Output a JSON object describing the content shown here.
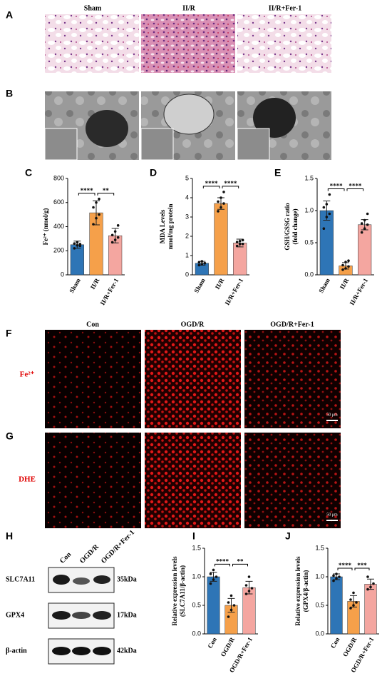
{
  "panel_A": {
    "letter": "A",
    "columns": [
      "Sham",
      "II/R",
      "II/R+Fer-1"
    ]
  },
  "panel_B": {
    "letter": "B"
  },
  "panel_F": {
    "letter": "F",
    "columns": [
      "Con",
      "OGD/R",
      "OGD/R+Fer-1"
    ],
    "row_label": "Fe²⁺",
    "scale_bar": "50 μm"
  },
  "panel_G": {
    "letter": "G",
    "row_label": "DHE",
    "scale_bar": "50 μm"
  },
  "panel_H": {
    "letter": "H",
    "columns": [
      "Con",
      "OGD/R",
      "OGD/R+Fer-1"
    ],
    "rows": [
      {
        "protein": "SLC7A11",
        "size": "35kDa"
      },
      {
        "protein": "GPX4",
        "size": "17kDa"
      },
      {
        "protein": "β-actin",
        "size": "42kDa"
      }
    ]
  },
  "chart_data": [
    {
      "type": "bar",
      "letter": "C",
      "y_label": [
        "Fe²⁺ (nmol/g)"
      ],
      "categories": [
        "Sham",
        "II/R",
        "II/R+Fer-1"
      ],
      "values": [
        250,
        515,
        325
      ],
      "errors": [
        30,
        100,
        60
      ],
      "points": [
        [
          220,
          245,
          255,
          260,
          270,
          240
        ],
        [
          420,
          470,
          500,
          560,
          600,
          630
        ],
        [
          270,
          290,
          310,
          330,
          360,
          410
        ]
      ],
      "colors": [
        "#2e75b6",
        "#f5a04a",
        "#f4a6a0"
      ],
      "ylim": [
        0,
        800
      ],
      "yticks": [
        0,
        200,
        400,
        600,
        800
      ],
      "significance": [
        "****",
        "**"
      ]
    },
    {
      "type": "bar",
      "letter": "D",
      "y_label": [
        "MDA Levels",
        "nmol/mg protein"
      ],
      "categories": [
        "Sham",
        "II/R",
        "II/R+Fer-1"
      ],
      "values": [
        0.6,
        3.7,
        1.65
      ],
      "errors": [
        0.1,
        0.3,
        0.2
      ],
      "points": [
        [
          0.5,
          0.55,
          0.6,
          0.65,
          0.7,
          0.6
        ],
        [
          3.3,
          3.5,
          3.7,
          3.8,
          4.0,
          4.3
        ],
        [
          1.5,
          1.6,
          1.6,
          1.7,
          1.75,
          1.8
        ]
      ],
      "colors": [
        "#2e75b6",
        "#f5a04a",
        "#f4a6a0"
      ],
      "ylim": [
        0,
        5
      ],
      "yticks": [
        0,
        1,
        2,
        3,
        4,
        5
      ],
      "significance": [
        "****",
        "****"
      ]
    },
    {
      "type": "bar",
      "letter": "E",
      "y_label": [
        "GSH/GSSG ratio",
        "(fold change)"
      ],
      "categories": [
        "Sham",
        "II/R",
        "II/R+Fer-1"
      ],
      "values": [
        1.0,
        0.14,
        0.78
      ],
      "errors": [
        0.15,
        0.05,
        0.08
      ],
      "points": [
        [
          0.72,
          0.9,
          0.95,
          1.05,
          1.1,
          1.25
        ],
        [
          0.08,
          0.1,
          0.13,
          0.15,
          0.2,
          0.22
        ],
        [
          0.66,
          0.72,
          0.78,
          0.8,
          0.85,
          0.95
        ]
      ],
      "colors": [
        "#2e75b6",
        "#f5a04a",
        "#f4a6a0"
      ],
      "ylim": [
        0,
        1.5
      ],
      "yticks": [
        {
          "value": 0,
          "label": "0.0"
        },
        0.5,
        {
          "value": 1,
          "label": "1.0"
        },
        1.5
      ],
      "significance": [
        "****",
        "****"
      ]
    },
    {
      "type": "bar",
      "letter": "I",
      "y_label": [
        "Relative expression levels",
        "(SLC7A11/β-actin)"
      ],
      "categories": [
        "Con",
        "OGD/R",
        "OGD/R+Fer-1"
      ],
      "values": [
        1.0,
        0.5,
        0.81
      ],
      "errors": [
        0.08,
        0.12,
        0.11
      ],
      "points": [
        [
          0.88,
          0.95,
          1.0,
          1.05,
          1.12
        ],
        [
          0.3,
          0.42,
          0.5,
          0.55,
          0.67
        ],
        [
          0.7,
          0.75,
          0.8,
          0.85,
          1.0
        ]
      ],
      "colors": [
        "#2e75b6",
        "#f5a04a",
        "#f4a6a0"
      ],
      "ylim": [
        0,
        1.5
      ],
      "yticks": [
        {
          "value": 0,
          "label": "0.0"
        },
        0.5,
        {
          "value": 1,
          "label": "1.0"
        },
        1.5
      ],
      "significance": [
        "****",
        "**"
      ]
    },
    {
      "type": "bar",
      "letter": "J",
      "y_label": [
        "Relative expression levels",
        "(GPX4/β-actin)"
      ],
      "categories": [
        "Con",
        "OGD/R",
        "OGD/R+Fer-1"
      ],
      "values": [
        1.0,
        0.57,
        0.87
      ],
      "errors": [
        0.05,
        0.1,
        0.09
      ],
      "points": [
        [
          0.93,
          0.97,
          1.0,
          1.02,
          1.05
        ],
        [
          0.45,
          0.5,
          0.55,
          0.6,
          0.72
        ],
        [
          0.78,
          0.82,
          0.88,
          1.0
        ]
      ],
      "colors": [
        "#2e75b6",
        "#f5a04a",
        "#f4a6a0"
      ],
      "ylim": [
        0,
        1.5
      ],
      "yticks": [
        {
          "value": 0,
          "label": "0.0"
        },
        0.5,
        {
          "value": 1,
          "label": "1.0"
        },
        1.5
      ],
      "significance": [
        "****",
        "***"
      ]
    }
  ]
}
